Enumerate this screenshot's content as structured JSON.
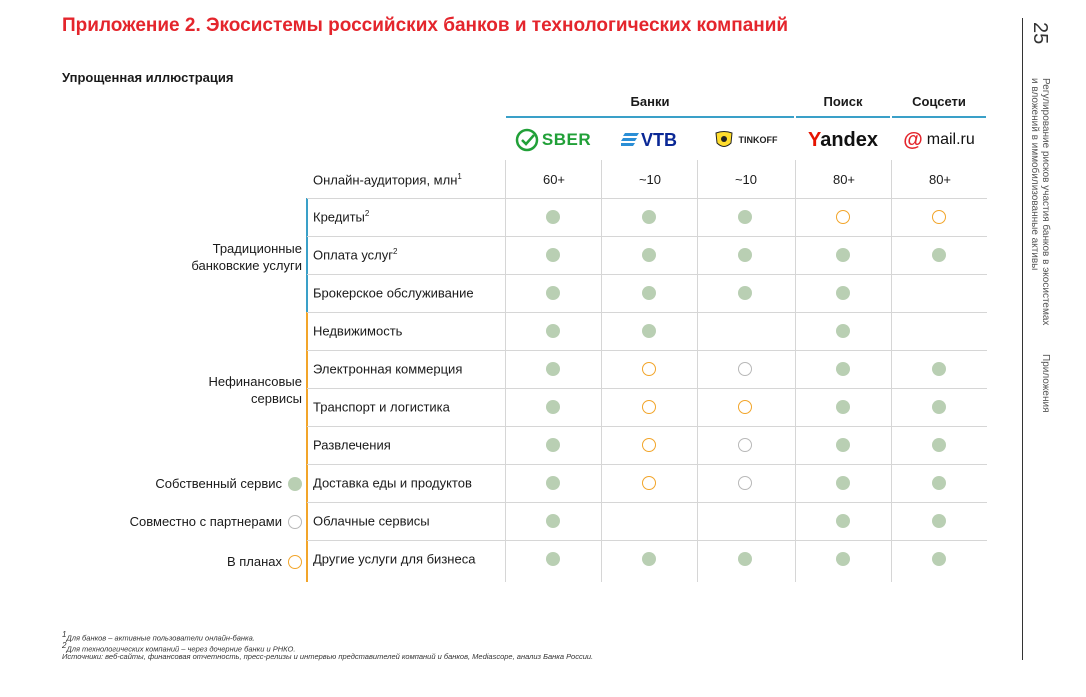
{
  "title": "Приложение 2. Экосистемы российских банков и технологических компаний",
  "subtitle": "Упрощенная иллюстрация",
  "groups": {
    "banks": "Банки",
    "search": "Поиск",
    "social": "Соцсети"
  },
  "logos": {
    "sber": "SBER",
    "vtb": "VTB",
    "tinkoff": "TINKOFF",
    "yandex": "Yandex",
    "mailru": "mail.ru"
  },
  "audience": {
    "label": "Онлайн-аудитория, млн",
    "sup": "1",
    "values": [
      "60+",
      "~10",
      "~10",
      "80+",
      "80+"
    ]
  },
  "categories": {
    "traditional": "Традиционные банковские услуги",
    "nonfinancial": "Нефинансовые сервисы"
  },
  "rows": [
    {
      "label": "Кредиты",
      "sup": "2",
      "cells": [
        "own",
        "own",
        "own",
        "plan",
        "plan"
      ]
    },
    {
      "label": "Оплата услуг",
      "sup": "2",
      "cells": [
        "own",
        "own",
        "own",
        "own",
        "own"
      ]
    },
    {
      "label": "Брокерское обслуживание",
      "sup": "",
      "cells": [
        "own",
        "own",
        "own",
        "own",
        ""
      ]
    },
    {
      "label": "Недвижимость",
      "sup": "",
      "cells": [
        "own",
        "own",
        "",
        "own",
        ""
      ]
    },
    {
      "label": "Электронная коммерция",
      "sup": "",
      "cells": [
        "own",
        "plan",
        "partner",
        "own",
        "own"
      ]
    },
    {
      "label": "Транспорт и логистика",
      "sup": "",
      "cells": [
        "own",
        "plan",
        "plan",
        "own",
        "own"
      ]
    },
    {
      "label": "Развлечения",
      "sup": "",
      "cells": [
        "own",
        "plan",
        "partner",
        "own",
        "own"
      ]
    },
    {
      "label": "Доставка еды и продуктов",
      "sup": "",
      "cells": [
        "own",
        "plan",
        "partner",
        "own",
        "own"
      ]
    },
    {
      "label": "Облачные сервисы",
      "sup": "",
      "cells": [
        "own",
        "",
        "",
        "own",
        "own"
      ]
    },
    {
      "label": "Другие услуги для бизнеса",
      "sup": "",
      "cells": [
        "own",
        "own",
        "own",
        "own",
        "own"
      ]
    }
  ],
  "legend": {
    "own": "Собственный сервис",
    "partner": "Совместно с партнерами",
    "plan": "В планах"
  },
  "footnotes": [
    "Для банков – активные пользователи онлайн-банка.",
    "Для технологических компаний – через дочерние банки и РНКО.",
    "Источники: веб-сайты, финансовая отчетность, пресс-релизы и интервью представителей компаний и банков, Mediascope, анализ Банка России."
  ],
  "side": {
    "page_number": "25",
    "line1": "Регулирование рисков участия банков в экосистемах",
    "line2": "и вложений в иммобилизованные активы",
    "section": "Приложения"
  },
  "colors": {
    "accent": "#e4252c",
    "own": "#b9cfb3",
    "plan": "#f2a52a",
    "partner": "#b8b8b8",
    "bank_line": "#3aa0c8",
    "nonfin_line": "#f2a52a"
  }
}
